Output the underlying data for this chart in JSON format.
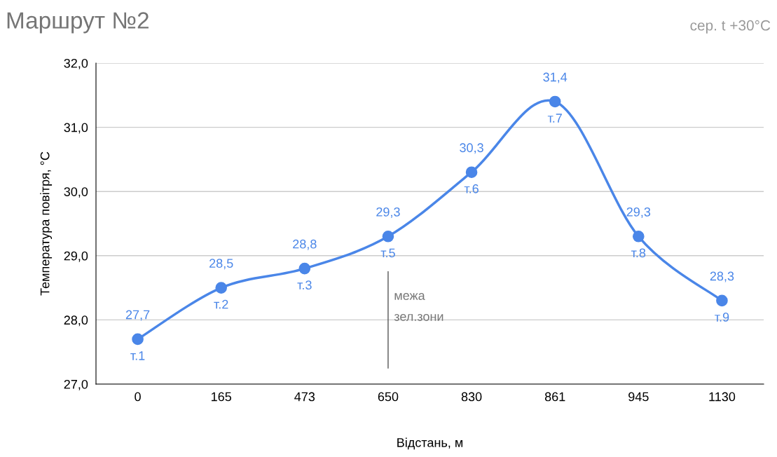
{
  "chart_data": {
    "type": "line",
    "title": "Маршрут №2",
    "subtitle": "сер. t +30°C",
    "xlabel": "Відстань, м",
    "ylabel": "Температура повітря, °C",
    "categories": [
      "0",
      "165",
      "473",
      "650",
      "830",
      "861",
      "945",
      "1130"
    ],
    "series": [
      {
        "color": "#4a86e8",
        "values": [
          27.7,
          28.5,
          28.8,
          29.3,
          30.3,
          31.4,
          29.3,
          28.3
        ],
        "value_labels": [
          "27,7",
          "28,5",
          "28,8",
          "29,3",
          "30,3",
          "31,4",
          "29,3",
          "28,3"
        ]
      }
    ],
    "ylim": [
      27,
      32
    ],
    "yticks": [
      {
        "value": 27,
        "label": "27,0"
      },
      {
        "value": 28,
        "label": "28,0"
      },
      {
        "value": 29,
        "label": "29,0"
      },
      {
        "value": 30,
        "label": "30,0"
      },
      {
        "value": 31,
        "label": "31,0"
      },
      {
        "value": 32,
        "label": "32,0"
      }
    ],
    "grid": "y",
    "marker": "circle",
    "line_style": "solid",
    "ref_lines": [
      {
        "axis": "x",
        "value": "650",
        "label": "межа\nзел.зони",
        "color": "#555555"
      }
    ],
    "annotations": [
      {
        "text": "т.1",
        "x": "0",
        "y": 27.7
      },
      {
        "text": "т.2",
        "x": "165",
        "y": 28.5
      },
      {
        "text": "т.3",
        "x": "473",
        "y": 28.8
      },
      {
        "text": "т.5",
        "x": "650",
        "y": 29.3
      },
      {
        "text": "т.6",
        "x": "830",
        "y": 30.3
      },
      {
        "text": "т.7",
        "x": "861",
        "y": 31.4
      },
      {
        "text": "т.8",
        "x": "945",
        "y": 29.3
      },
      {
        "text": "т.9",
        "x": "1130",
        "y": 28.3
      }
    ]
  }
}
